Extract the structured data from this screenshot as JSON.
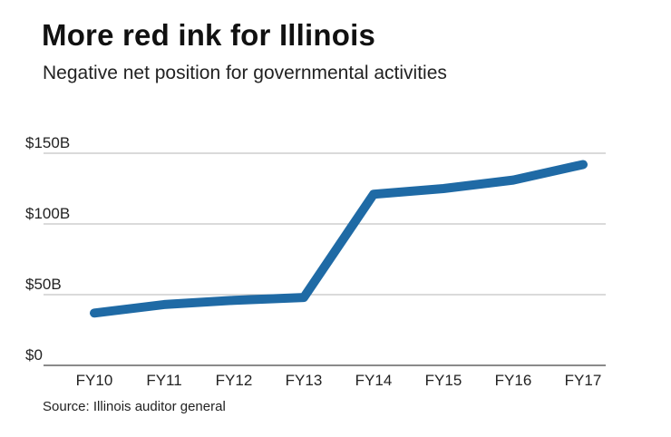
{
  "chart_data": {
    "type": "line",
    "title": "More red ink for Illinois",
    "subtitle": "Negative net position for governmental activities",
    "source": "Source: Illinois auditor general",
    "categories": [
      "FY10",
      "FY11",
      "FY12",
      "FY13",
      "FY14",
      "FY15",
      "FY16",
      "FY17"
    ],
    "series": [
      {
        "values": [
          37,
          43,
          46,
          48,
          121,
          125,
          131,
          142
        ]
      }
    ],
    "ylim": [
      0,
      150
    ],
    "yticks": [
      0,
      50,
      100,
      150
    ],
    "ytick_labels": [
      "$0",
      "$50B",
      "$100B",
      "$150B"
    ],
    "xlabel": "",
    "ylabel": "",
    "grid": true,
    "legend": "none",
    "colors": {
      "line": "#1f6aa5",
      "grid": "#b5b5b5",
      "baseline": "#444444"
    }
  }
}
